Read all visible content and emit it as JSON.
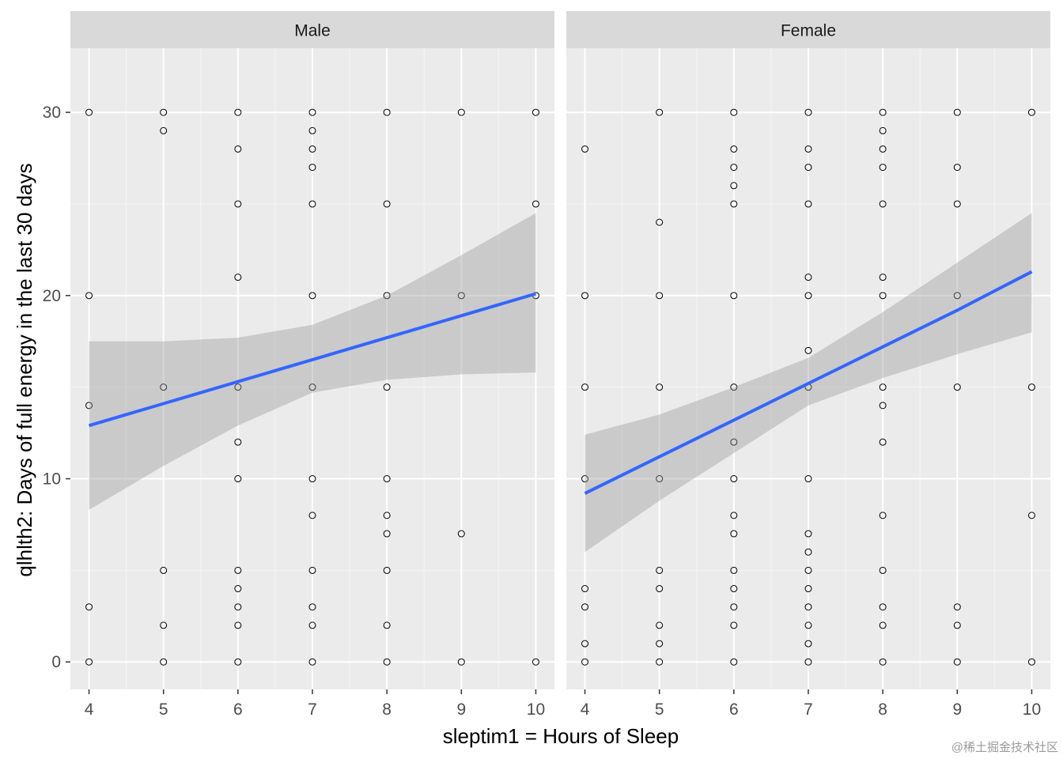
{
  "chart_data": {
    "type": "scatter",
    "xlabel": "sleptim1 = Hours of Sleep",
    "ylabel": "qlhlth2: Days of full energy in the last 30 days",
    "xlim": [
      3.75,
      10.25
    ],
    "ylim": [
      -1.5,
      33.5
    ],
    "x_ticks": [
      4,
      5,
      6,
      7,
      8,
      9,
      10
    ],
    "y_ticks": [
      0,
      10,
      20,
      30
    ],
    "grid": true,
    "smooth": {
      "method": "linear",
      "color": "#3366FF",
      "ribbon_color": "#999999"
    },
    "panels": [
      {
        "strip": "Male",
        "points": [
          [
            4,
            30
          ],
          [
            4,
            20
          ],
          [
            4,
            14
          ],
          [
            4,
            3
          ],
          [
            4,
            0
          ],
          [
            5,
            30
          ],
          [
            5,
            29
          ],
          [
            5,
            15
          ],
          [
            5,
            5
          ],
          [
            5,
            2
          ],
          [
            5,
            0
          ],
          [
            6,
            30
          ],
          [
            6,
            28
          ],
          [
            6,
            25
          ],
          [
            6,
            21
          ],
          [
            6,
            15
          ],
          [
            6,
            12
          ],
          [
            6,
            10
          ],
          [
            6,
            5
          ],
          [
            6,
            4
          ],
          [
            6,
            3
          ],
          [
            6,
            2
          ],
          [
            6,
            0
          ],
          [
            7,
            30
          ],
          [
            7,
            29
          ],
          [
            7,
            28
          ],
          [
            7,
            27
          ],
          [
            7,
            25
          ],
          [
            7,
            20
          ],
          [
            7,
            15
          ],
          [
            7,
            10
          ],
          [
            7,
            8
          ],
          [
            7,
            5
          ],
          [
            7,
            3
          ],
          [
            7,
            2
          ],
          [
            7,
            0
          ],
          [
            8,
            30
          ],
          [
            8,
            25
          ],
          [
            8,
            20
          ],
          [
            8,
            15
          ],
          [
            8,
            10
          ],
          [
            8,
            8
          ],
          [
            8,
            7
          ],
          [
            8,
            5
          ],
          [
            8,
            2
          ],
          [
            8,
            0
          ],
          [
            9,
            30
          ],
          [
            9,
            20
          ],
          [
            9,
            7
          ],
          [
            9,
            0
          ],
          [
            10,
            30
          ],
          [
            10,
            25
          ],
          [
            10,
            20
          ],
          [
            10,
            0
          ]
        ],
        "fit": {
          "x": [
            4,
            5,
            6,
            7,
            8,
            9,
            10
          ],
          "y": [
            12.9,
            14.1,
            15.3,
            16.5,
            17.7,
            18.9,
            20.1
          ],
          "lower": [
            8.3,
            10.7,
            12.9,
            14.7,
            15.4,
            15.7,
            15.8
          ],
          "upper": [
            17.5,
            17.5,
            17.7,
            18.4,
            20.0,
            22.2,
            24.5
          ]
        }
      },
      {
        "strip": "Female",
        "points": [
          [
            4,
            28
          ],
          [
            4,
            20
          ],
          [
            4,
            15
          ],
          [
            4,
            10
          ],
          [
            4,
            4
          ],
          [
            4,
            3
          ],
          [
            4,
            1
          ],
          [
            4,
            0
          ],
          [
            5,
            30
          ],
          [
            5,
            24
          ],
          [
            5,
            20
          ],
          [
            5,
            15
          ],
          [
            5,
            10
          ],
          [
            5,
            5
          ],
          [
            5,
            4
          ],
          [
            5,
            2
          ],
          [
            5,
            1
          ],
          [
            5,
            0
          ],
          [
            6,
            30
          ],
          [
            6,
            28
          ],
          [
            6,
            27
          ],
          [
            6,
            26
          ],
          [
            6,
            25
          ],
          [
            6,
            20
          ],
          [
            6,
            15
          ],
          [
            6,
            12
          ],
          [
            6,
            10
          ],
          [
            6,
            8
          ],
          [
            6,
            7
          ],
          [
            6,
            5
          ],
          [
            6,
            4
          ],
          [
            6,
            3
          ],
          [
            6,
            2
          ],
          [
            6,
            0
          ],
          [
            7,
            30
          ],
          [
            7,
            28
          ],
          [
            7,
            27
          ],
          [
            7,
            25
          ],
          [
            7,
            21
          ],
          [
            7,
            20
          ],
          [
            7,
            17
          ],
          [
            7,
            15
          ],
          [
            7,
            10
          ],
          [
            7,
            7
          ],
          [
            7,
            6
          ],
          [
            7,
            5
          ],
          [
            7,
            4
          ],
          [
            7,
            3
          ],
          [
            7,
            2
          ],
          [
            7,
            1
          ],
          [
            7,
            0
          ],
          [
            8,
            30
          ],
          [
            8,
            29
          ],
          [
            8,
            28
          ],
          [
            8,
            27
          ],
          [
            8,
            25
          ],
          [
            8,
            21
          ],
          [
            8,
            20
          ],
          [
            8,
            15
          ],
          [
            8,
            14
          ],
          [
            8,
            12
          ],
          [
            8,
            8
          ],
          [
            8,
            5
          ],
          [
            8,
            3
          ],
          [
            8,
            2
          ],
          [
            8,
            0
          ],
          [
            9,
            30
          ],
          [
            9,
            27
          ],
          [
            9,
            25
          ],
          [
            9,
            20
          ],
          [
            9,
            15
          ],
          [
            9,
            3
          ],
          [
            9,
            2
          ],
          [
            9,
            0
          ],
          [
            10,
            30
          ],
          [
            10,
            15
          ],
          [
            10,
            8
          ],
          [
            10,
            0
          ]
        ],
        "fit": {
          "x": [
            4,
            5,
            6,
            7,
            8,
            9,
            10
          ],
          "y": [
            9.2,
            11.2,
            13.2,
            15.2,
            17.2,
            19.2,
            21.3
          ],
          "lower": [
            6.0,
            8.8,
            11.4,
            14.0,
            15.5,
            16.8,
            18.0
          ],
          "upper": [
            12.4,
            13.5,
            15.0,
            16.6,
            19.1,
            21.8,
            24.5
          ]
        }
      }
    ]
  },
  "watermark": "@稀土掘金技术社区"
}
